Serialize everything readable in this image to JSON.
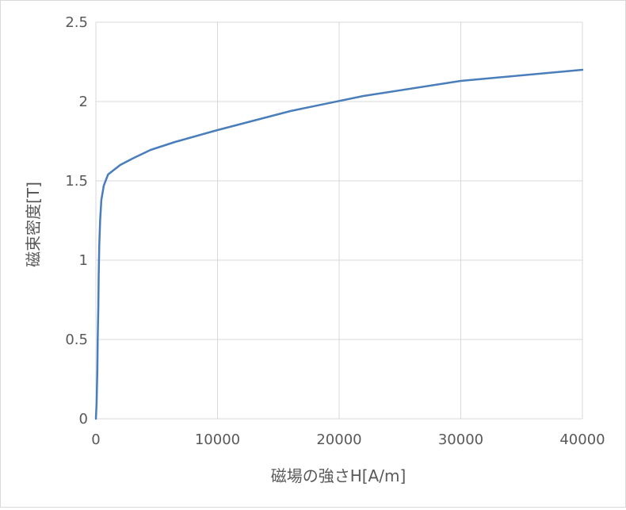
{
  "chart_data": {
    "type": "line",
    "title": "",
    "xlabel": "磁場の強さH[A/m]",
    "ylabel": "磁束密度[T]",
    "xlim": [
      0,
      40000
    ],
    "ylim": [
      0,
      2.5
    ],
    "x_ticks": [
      "0",
      "10000",
      "20000",
      "30000",
      "40000"
    ],
    "y_ticks": [
      "0",
      "0.5",
      "1",
      "1.5",
      "2",
      "2.5"
    ],
    "x_tick_values": [
      0,
      10000,
      20000,
      30000,
      40000
    ],
    "y_tick_values": [
      0,
      0.5,
      1,
      1.5,
      2,
      2.5
    ],
    "grid": true,
    "legend": "none",
    "series": [
      {
        "color": "#4a7ebb",
        "points": [
          [
            0,
            0
          ],
          [
            60,
            0.1
          ],
          [
            120,
            0.3
          ],
          [
            150,
            0.5
          ],
          [
            200,
            0.7
          ],
          [
            230,
            0.9
          ],
          [
            280,
            1.1
          ],
          [
            350,
            1.25
          ],
          [
            450,
            1.38
          ],
          [
            650,
            1.47
          ],
          [
            1000,
            1.54
          ],
          [
            2000,
            1.6
          ],
          [
            3000,
            1.64
          ],
          [
            4500,
            1.695
          ],
          [
            6500,
            1.745
          ],
          [
            10000,
            1.82
          ],
          [
            16000,
            1.94
          ],
          [
            22000,
            2.035
          ],
          [
            30000,
            2.13
          ],
          [
            40000,
            2.2
          ]
        ]
      }
    ]
  }
}
